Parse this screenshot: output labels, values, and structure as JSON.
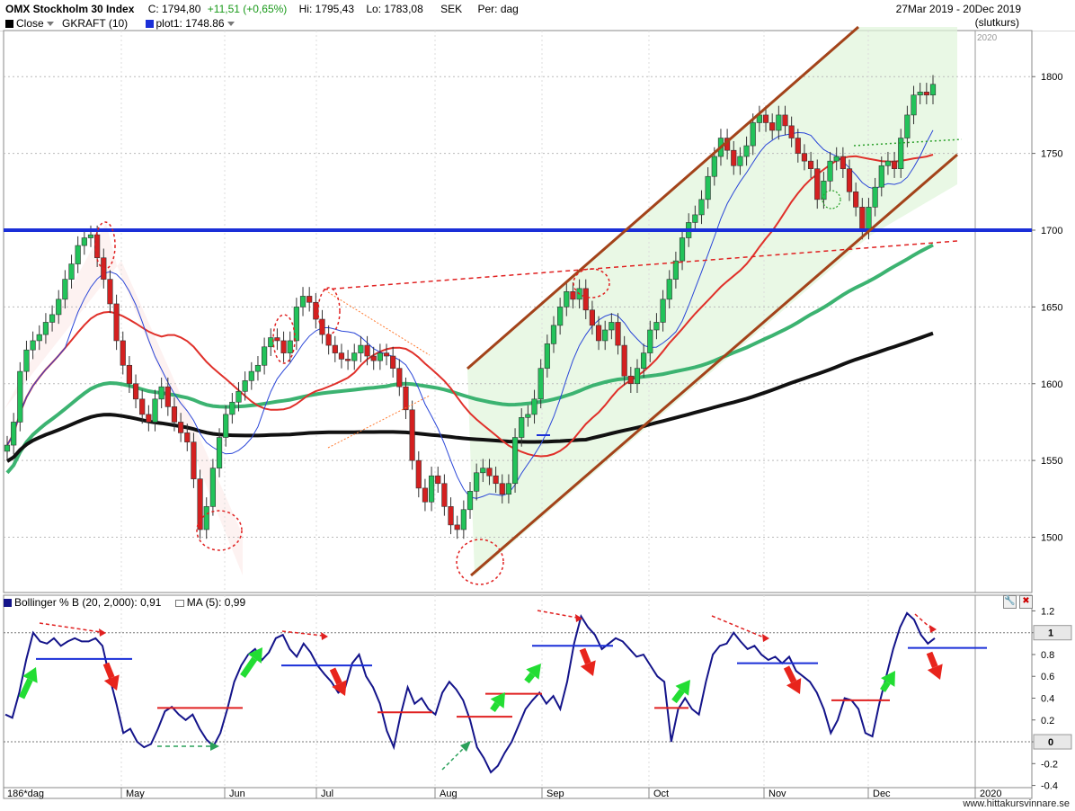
{
  "header": {
    "symbol": "OMX Stockholm 30 Index",
    "close": "C: 1794,80",
    "change": "+11,51 (+0,65%)",
    "high": "Hi: 1795,43",
    "low": "Lo: 1783,08",
    "currency": "SEK",
    "period": "Per: dag",
    "date_range": "27Mar 2019 - 20Dec 2019",
    "slutkurs": "(slutkurs)"
  },
  "legend": {
    "close_label": "Close",
    "gkraft_label": "GKRAFT (10)",
    "plot1_label": "plot1: 1748.86"
  },
  "indicator": {
    "bollinger_label": "Bollinger % B (20, 2,000): 0,91",
    "ma_label": "MA (5): 0,99"
  },
  "footer": {
    "period_label": "186*dag",
    "watermark": "www.hittakursvinnare.se"
  },
  "colors": {
    "up": "#22c35a",
    "down": "#d42020",
    "ma_black": "#111111",
    "ma_green": "#3cb371",
    "ma_red": "#e0302a",
    "ma_blue": "#2a46d8",
    "channel": "#a3431a",
    "hline": "#1a2fd8",
    "pctb": "#14148a"
  },
  "chart_data": [
    {
      "type": "candlestick",
      "title": "OMX Stockholm 30 Index",
      "x_ticks": [
        "May",
        "Jun",
        "Jul",
        "Aug",
        "Sep",
        "Oct",
        "Nov",
        "Dec",
        "2020"
      ],
      "year_label": "2020",
      "y_ticks": [
        1500,
        1550,
        1600,
        1650,
        1700,
        1750,
        1800
      ],
      "ylim": [
        1464,
        1830
      ],
      "close_path": [
        1560,
        1575,
        1608,
        1622,
        1628,
        1632,
        1640,
        1645,
        1655,
        1668,
        1678,
        1690,
        1695,
        1697,
        1682,
        1668,
        1652,
        1628,
        1612,
        1600,
        1590,
        1580,
        1575,
        1590,
        1598,
        1585,
        1575,
        1568,
        1562,
        1538,
        1505,
        1520,
        1545,
        1565,
        1580,
        1588,
        1595,
        1602,
        1608,
        1612,
        1624,
        1630,
        1628,
        1620,
        1628,
        1650,
        1657,
        1653,
        1642,
        1632,
        1625,
        1620,
        1616,
        1615,
        1620,
        1625,
        1618,
        1615,
        1620,
        1618,
        1610,
        1598,
        1583,
        1550,
        1532,
        1523,
        1540,
        1535,
        1520,
        1508,
        1505,
        1518,
        1530,
        1542,
        1545,
        1540,
        1535,
        1528,
        1535,
        1565,
        1578,
        1580,
        1590,
        1610,
        1626,
        1638,
        1650,
        1660,
        1655,
        1662,
        1648,
        1638,
        1628,
        1635,
        1640,
        1625,
        1605,
        1600,
        1610,
        1620,
        1635,
        1640,
        1655,
        1668,
        1680,
        1695,
        1705,
        1710,
        1720,
        1735,
        1748,
        1760,
        1752,
        1742,
        1748,
        1755,
        1770,
        1775,
        1770,
        1765,
        1775,
        1768,
        1760,
        1750,
        1745,
        1740,
        1720,
        1732,
        1745,
        1748,
        1740,
        1725,
        1715,
        1700,
        1715,
        1728,
        1742,
        1745,
        1740,
        1760,
        1775,
        1788,
        1790,
        1788,
        1795
      ],
      "levels": [
        {
          "name": "plot1",
          "value": 1700
        }
      ],
      "moving_averages": [
        "black",
        "green",
        "red",
        "blue"
      ]
    },
    {
      "type": "line",
      "title": "Bollinger % B (20, 2,000)",
      "y_ticks": [
        -0.4,
        -0.2,
        0,
        0.2,
        0.4,
        0.6,
        0.8,
        1,
        1.2
      ],
      "ylim": [
        -0.42,
        1.22
      ],
      "highlighted_ticks": [
        1,
        0
      ],
      "values": [
        0.25,
        0.22,
        0.45,
        0.75,
        1,
        0.92,
        0.9,
        0.95,
        0.88,
        0.92,
        0.95,
        0.92,
        0.92,
        0.95,
        0.88,
        0.6,
        0.35,
        0.08,
        0.12,
        0.0,
        -0.05,
        -0.02,
        0.12,
        0.28,
        0.32,
        0.25,
        0.2,
        0.25,
        0.12,
        0.02,
        -0.04,
        0.08,
        0.3,
        0.55,
        0.7,
        0.8,
        0.85,
        0.75,
        0.82,
        0.95,
        0.98,
        0.85,
        0.78,
        0.9,
        0.82,
        0.7,
        0.62,
        0.55,
        0.45,
        0.5,
        0.72,
        0.8,
        0.6,
        0.5,
        0.35,
        0.1,
        -0.05,
        0.25,
        0.5,
        0.35,
        0.4,
        0.3,
        0.25,
        0.45,
        0.55,
        0.48,
        0.38,
        0.2,
        -0.05,
        -0.15,
        -0.28,
        -0.22,
        -0.1,
        0.0,
        0.15,
        0.3,
        0.38,
        0.45,
        0.35,
        0.42,
        0.3,
        0.55,
        0.9,
        1.15,
        1.05,
        0.98,
        0.85,
        0.9,
        0.95,
        0.92,
        0.85,
        0.78,
        0.8,
        0.7,
        0.6,
        0.55,
        0.0,
        0.3,
        0.4,
        0.3,
        0.25,
        0.55,
        0.8,
        0.88,
        0.9,
        1.0,
        0.92,
        0.85,
        0.88,
        0.8,
        0.75,
        0.78,
        0.72,
        0.78,
        0.65,
        0.6,
        0.55,
        0.45,
        0.3,
        0.08,
        0.2,
        0.4,
        0.38,
        0.3,
        0.08,
        0.05,
        0.35,
        0.6,
        0.85,
        1.05,
        1.18,
        1.12,
        0.98,
        0.9,
        0.95
      ]
    }
  ]
}
